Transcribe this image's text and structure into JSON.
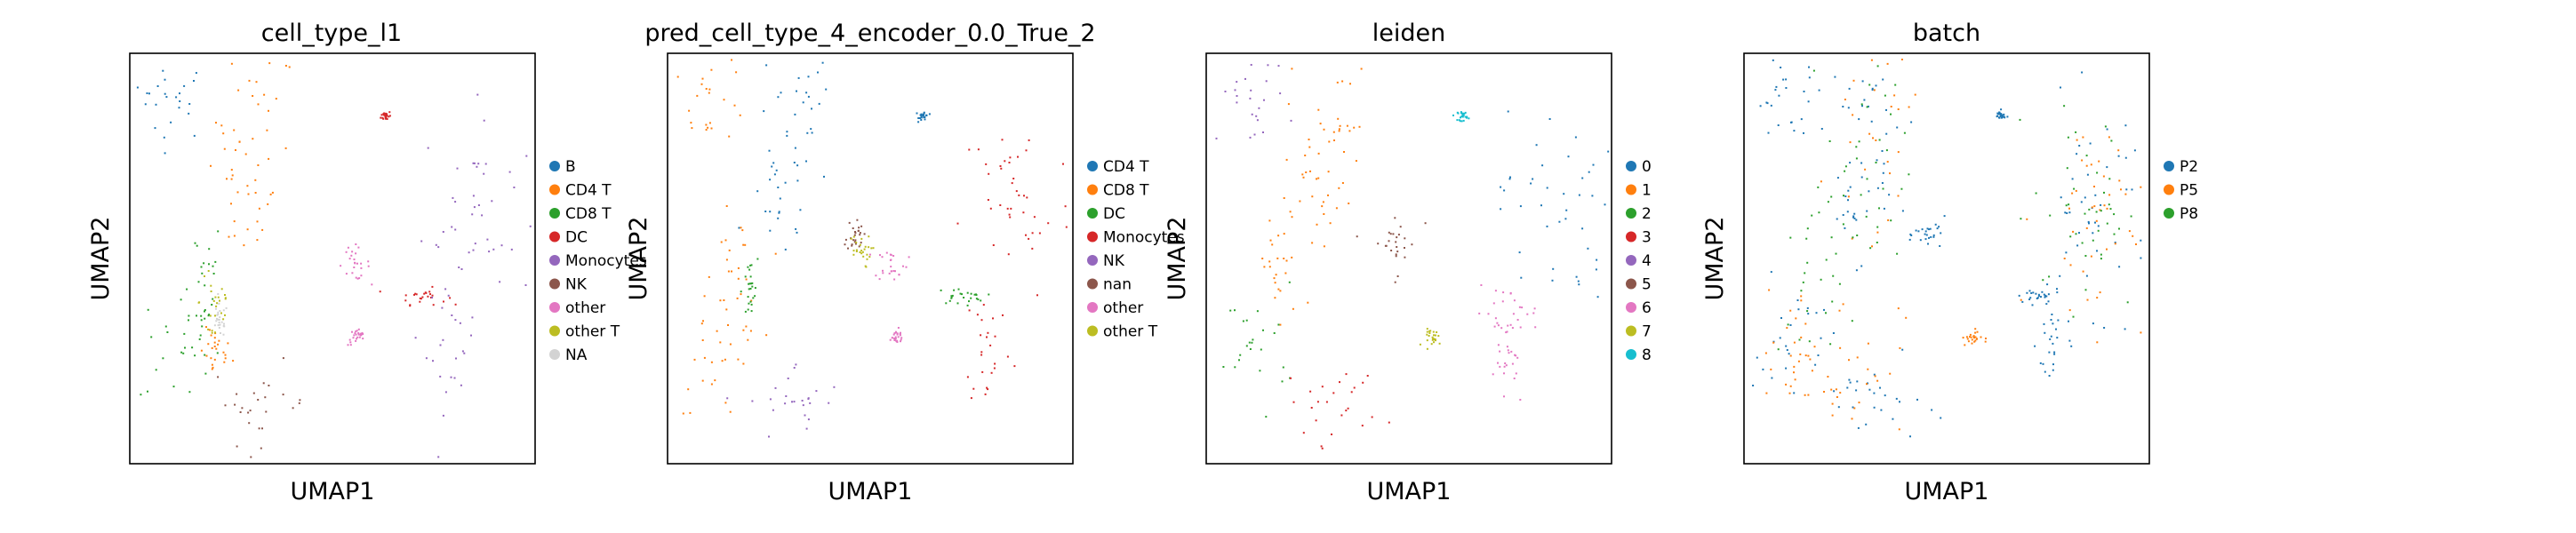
{
  "chart_data": [
    {
      "type": "scatter",
      "title": "cell_type_l1",
      "xlabel": "UMAP1",
      "ylabel": "UMAP2",
      "legend_position": "right",
      "grid": false,
      "ticks": false,
      "series": [
        {
          "name": "B",
          "color": "#1f77b4",
          "clusters": [
            {
              "x": 0.1,
              "y": 0.89,
              "sx": 0.05,
              "sy": 0.05
            }
          ]
        },
        {
          "name": "CD4 T",
          "color": "#ff7f0e",
          "clusters": [
            {
              "x": 0.31,
              "y": 0.84,
              "sx": 0.05,
              "sy": 0.09
            },
            {
              "x": 0.28,
              "y": 0.64,
              "sx": 0.04,
              "sy": 0.07
            },
            {
              "x": 0.21,
              "y": 0.27,
              "sx": 0.02,
              "sy": 0.03
            }
          ]
        },
        {
          "name": "CD8 T",
          "color": "#2ca02c",
          "clusters": [
            {
              "x": 0.12,
              "y": 0.29,
              "sx": 0.05,
              "sy": 0.08
            },
            {
              "x": 0.17,
              "y": 0.45,
              "sx": 0.03,
              "sy": 0.08
            }
          ]
        },
        {
          "name": "DC",
          "color": "#d62728",
          "clusters": [
            {
              "x": 0.63,
              "y": 0.85,
              "sx": 0.006,
              "sy": 0.006
            },
            {
              "x": 0.72,
              "y": 0.41,
              "sx": 0.03,
              "sy": 0.01
            }
          ]
        },
        {
          "name": "Monocytes",
          "color": "#9467bd",
          "clusters": [
            {
              "x": 0.86,
              "y": 0.63,
              "sx": 0.07,
              "sy": 0.12
            },
            {
              "x": 0.79,
              "y": 0.29,
              "sx": 0.03,
              "sy": 0.08
            }
          ]
        },
        {
          "name": "NK",
          "color": "#8c564b",
          "clusters": [
            {
              "x": 0.32,
              "y": 0.15,
              "sx": 0.06,
              "sy": 0.05
            }
          ]
        },
        {
          "name": "other",
          "color": "#e377c2",
          "clusters": [
            {
              "x": 0.55,
              "y": 0.49,
              "sx": 0.02,
              "sy": 0.02
            },
            {
              "x": 0.56,
              "y": 0.31,
              "sx": 0.012,
              "sy": 0.01
            }
          ]
        },
        {
          "name": "other T",
          "color": "#bcbd22",
          "clusters": [
            {
              "x": 0.21,
              "y": 0.4,
              "sx": 0.02,
              "sy": 0.07
            }
          ]
        },
        {
          "name": "NA",
          "color": "#d3d3d3",
          "clusters": [
            {
              "x": 0.22,
              "y": 0.35,
              "sx": 0.01,
              "sy": 0.02
            }
          ]
        }
      ]
    },
    {
      "type": "scatter",
      "title": "pred_cell_type_4_encoder_0.0_True_2",
      "xlabel": "UMAP1",
      "ylabel": "UMAP2",
      "legend_position": "right",
      "grid": false,
      "ticks": false,
      "series": [
        {
          "name": "CD4 T",
          "color": "#1f77b4",
          "clusters": [
            {
              "x": 0.31,
              "y": 0.84,
              "sx": 0.05,
              "sy": 0.09
            },
            {
              "x": 0.28,
              "y": 0.64,
              "sx": 0.04,
              "sy": 0.07
            },
            {
              "x": 0.63,
              "y": 0.85,
              "sx": 0.006,
              "sy": 0.006
            }
          ]
        },
        {
          "name": "CD8 T",
          "color": "#ff7f0e",
          "clusters": [
            {
              "x": 0.1,
              "y": 0.89,
              "sx": 0.05,
              "sy": 0.05
            },
            {
              "x": 0.12,
              "y": 0.29,
              "sx": 0.05,
              "sy": 0.08
            },
            {
              "x": 0.17,
              "y": 0.45,
              "sx": 0.03,
              "sy": 0.08
            }
          ]
        },
        {
          "name": "DC",
          "color": "#2ca02c",
          "clusters": [
            {
              "x": 0.72,
              "y": 0.41,
              "sx": 0.03,
              "sy": 0.01
            },
            {
              "x": 0.2,
              "y": 0.42,
              "sx": 0.01,
              "sy": 0.04
            }
          ]
        },
        {
          "name": "Monocytes",
          "color": "#d62728",
          "clusters": [
            {
              "x": 0.86,
              "y": 0.63,
              "sx": 0.07,
              "sy": 0.12
            },
            {
              "x": 0.79,
              "y": 0.29,
              "sx": 0.03,
              "sy": 0.08
            }
          ]
        },
        {
          "name": "NK",
          "color": "#9467bd",
          "clusters": [
            {
              "x": 0.32,
              "y": 0.15,
              "sx": 0.06,
              "sy": 0.05
            }
          ]
        },
        {
          "name": "nan",
          "color": "#8c564b",
          "clusters": [
            {
              "x": 0.46,
              "y": 0.56,
              "sx": 0.01,
              "sy": 0.02
            }
          ]
        },
        {
          "name": "other",
          "color": "#e377c2",
          "clusters": [
            {
              "x": 0.55,
              "y": 0.49,
              "sx": 0.02,
              "sy": 0.02
            },
            {
              "x": 0.56,
              "y": 0.31,
              "sx": 0.012,
              "sy": 0.01
            }
          ]
        },
        {
          "name": "other T",
          "color": "#bcbd22",
          "clusters": [
            {
              "x": 0.47,
              "y": 0.52,
              "sx": 0.015,
              "sy": 0.02
            }
          ]
        }
      ]
    },
    {
      "type": "scatter",
      "title": "leiden",
      "xlabel": "UMAP1",
      "ylabel": "UMAP2",
      "legend_position": "right",
      "grid": false,
      "ticks": false,
      "series": [
        {
          "name": "0",
          "color": "#1f77b4",
          "clusters": [
            {
              "x": 0.86,
              "y": 0.63,
              "sx": 0.07,
              "sy": 0.12
            }
          ]
        },
        {
          "name": "1",
          "color": "#ff7f0e",
          "clusters": [
            {
              "x": 0.31,
              "y": 0.84,
              "sx": 0.05,
              "sy": 0.09
            },
            {
              "x": 0.28,
              "y": 0.64,
              "sx": 0.04,
              "sy": 0.07
            },
            {
              "x": 0.18,
              "y": 0.47,
              "sx": 0.03,
              "sy": 0.08
            }
          ]
        },
        {
          "name": "2",
          "color": "#2ca02c",
          "clusters": [
            {
              "x": 0.12,
              "y": 0.3,
              "sx": 0.05,
              "sy": 0.07
            }
          ]
        },
        {
          "name": "3",
          "color": "#d62728",
          "clusters": [
            {
              "x": 0.32,
              "y": 0.15,
              "sx": 0.06,
              "sy": 0.05
            }
          ]
        },
        {
          "name": "4",
          "color": "#9467bd",
          "clusters": [
            {
              "x": 0.1,
              "y": 0.89,
              "sx": 0.05,
              "sy": 0.05
            }
          ]
        },
        {
          "name": "5",
          "color": "#8c564b",
          "clusters": [
            {
              "x": 0.46,
              "y": 0.54,
              "sx": 0.03,
              "sy": 0.04
            }
          ]
        },
        {
          "name": "6",
          "color": "#e377c2",
          "clusters": [
            {
              "x": 0.74,
              "y": 0.37,
              "sx": 0.04,
              "sy": 0.03
            },
            {
              "x": 0.75,
              "y": 0.25,
              "sx": 0.02,
              "sy": 0.06
            }
          ]
        },
        {
          "name": "7",
          "color": "#bcbd22",
          "clusters": [
            {
              "x": 0.56,
              "y": 0.31,
              "sx": 0.012,
              "sy": 0.01
            }
          ]
        },
        {
          "name": "8",
          "color": "#17becf",
          "clusters": [
            {
              "x": 0.63,
              "y": 0.85,
              "sx": 0.006,
              "sy": 0.006
            }
          ]
        }
      ]
    },
    {
      "type": "scatter",
      "title": "batch",
      "xlabel": "UMAP1",
      "ylabel": "UMAP2",
      "legend_position": "right",
      "grid": false,
      "ticks": false,
      "series": [
        {
          "name": "P2",
          "color": "#1f77b4",
          "clusters": [
            {
              "x": 0.1,
              "y": 0.89,
              "sx": 0.05,
              "sy": 0.05
            },
            {
              "x": 0.31,
              "y": 0.84,
              "sx": 0.05,
              "sy": 0.09
            },
            {
              "x": 0.28,
              "y": 0.64,
              "sx": 0.04,
              "sy": 0.07
            },
            {
              "x": 0.12,
              "y": 0.29,
              "sx": 0.05,
              "sy": 0.08
            },
            {
              "x": 0.32,
              "y": 0.15,
              "sx": 0.06,
              "sy": 0.05
            },
            {
              "x": 0.86,
              "y": 0.63,
              "sx": 0.07,
              "sy": 0.12
            },
            {
              "x": 0.46,
              "y": 0.56,
              "sx": 0.02,
              "sy": 0.02
            },
            {
              "x": 0.72,
              "y": 0.41,
              "sx": 0.03,
              "sy": 0.01
            },
            {
              "x": 0.63,
              "y": 0.85,
              "sx": 0.006,
              "sy": 0.006
            },
            {
              "x": 0.76,
              "y": 0.3,
              "sx": 0.02,
              "sy": 0.06
            }
          ]
        },
        {
          "name": "P5",
          "color": "#ff7f0e",
          "clusters": [
            {
              "x": 0.31,
              "y": 0.8,
              "sx": 0.05,
              "sy": 0.12
            },
            {
              "x": 0.12,
              "y": 0.29,
              "sx": 0.05,
              "sy": 0.08
            },
            {
              "x": 0.25,
              "y": 0.25,
              "sx": 0.07,
              "sy": 0.09
            },
            {
              "x": 0.86,
              "y": 0.6,
              "sx": 0.07,
              "sy": 0.13
            },
            {
              "x": 0.56,
              "y": 0.31,
              "sx": 0.012,
              "sy": 0.01
            }
          ]
        },
        {
          "name": "P8",
          "color": "#2ca02c",
          "clusters": [
            {
              "x": 0.16,
              "y": 0.4,
              "sx": 0.04,
              "sy": 0.12
            },
            {
              "x": 0.3,
              "y": 0.72,
              "sx": 0.05,
              "sy": 0.15
            },
            {
              "x": 0.85,
              "y": 0.62,
              "sx": 0.07,
              "sy": 0.12
            }
          ]
        }
      ]
    }
  ]
}
